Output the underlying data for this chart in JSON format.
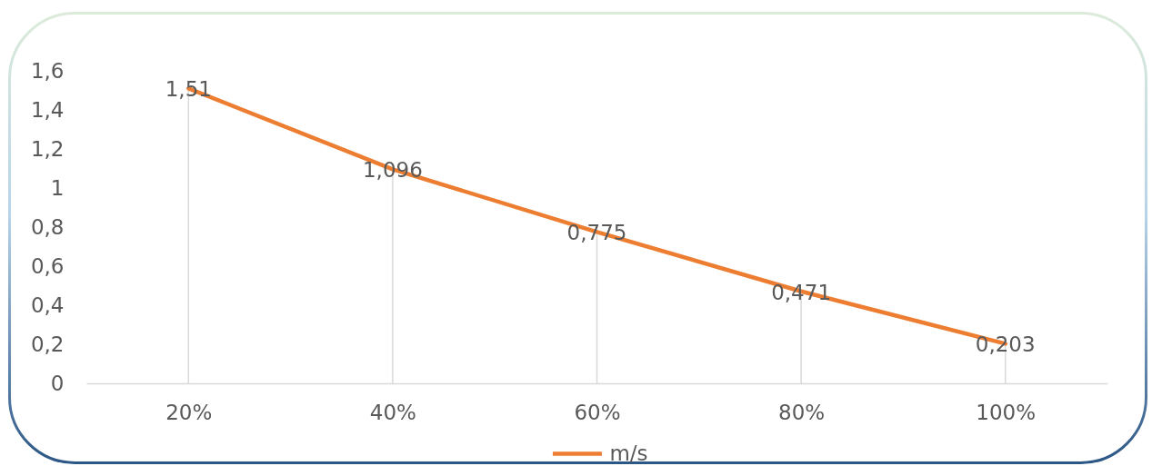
{
  "chart_data": {
    "type": "line",
    "categories": [
      "20%",
      "40%",
      "60%",
      "80%",
      "100%"
    ],
    "series": [
      {
        "name": "m/s",
        "color": "#ed7d31",
        "values": [
          1.51,
          1.096,
          0.775,
          0.471,
          0.203
        ],
        "value_labels": [
          "1,51",
          "1,096",
          "0,775",
          "0,471",
          "0,203"
        ]
      }
    ],
    "ylim": [
      0,
      1.6
    ],
    "yticks": [
      0,
      {
        "value": 0.2,
        "label": "0,2"
      },
      {
        "value": 0.4,
        "label": "0,4"
      },
      {
        "value": 0.6,
        "label": "0,6"
      },
      {
        "value": 0.8,
        "label": "0,8"
      },
      1,
      {
        "value": 1.2,
        "label": "1,2"
      },
      {
        "value": 1.4,
        "label": "1,4"
      },
      {
        "value": 1.6,
        "label": "1,6"
      }
    ],
    "legend": "bottom"
  }
}
